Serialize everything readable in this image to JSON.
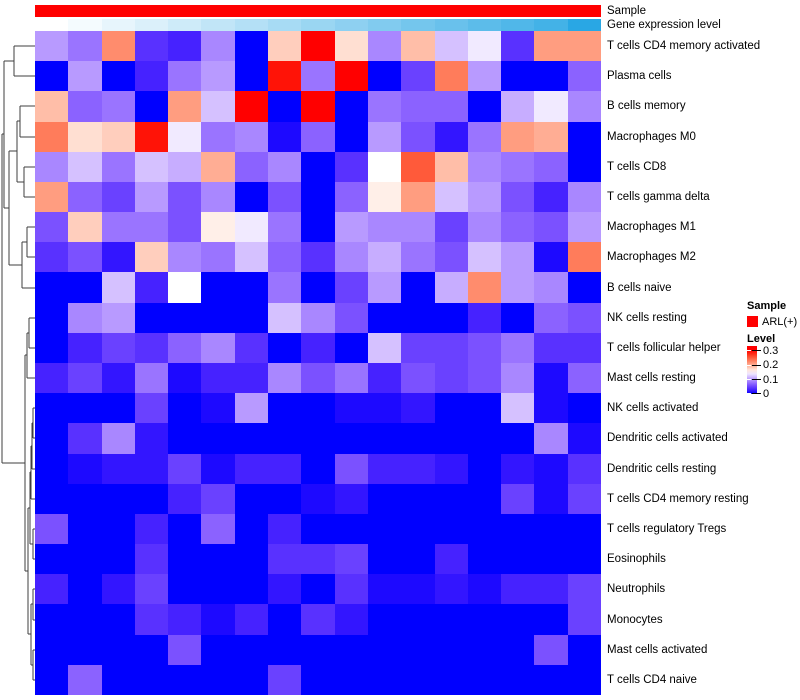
{
  "annotations": {
    "sample_label": "Sample",
    "gene_label": "Gene expression level",
    "sample_color": "#FF0000",
    "gene_gradient_start": "#FFFFFF",
    "gene_gradient_end": "#29A7E4"
  },
  "legend": {
    "sample_title": "Sample",
    "sample_item_label": "ARL(+)",
    "sample_item_color": "#FF0000",
    "level_title": "Level",
    "level_ticks": [
      "0.3",
      "0.2",
      "0.1",
      "0"
    ],
    "level_tick_values": [
      0.3,
      0.2,
      0.1,
      0
    ]
  },
  "chart_data": {
    "type": "heatmap",
    "rows": [
      "T cells CD4 memory activated",
      "Plasma cells",
      "B cells memory",
      "Macrophages M0",
      "T cells CD8",
      "T cells gamma delta",
      "Macrophages M1",
      "Macrophages M2",
      "B cells naive",
      "NK cells resting",
      "T cells follicular helper",
      "Mast cells resting",
      "NK cells activated",
      "Dendritic cells activated",
      "Dendritic cells resting",
      "T cells CD4 memory resting",
      "T cells regulatory  Tregs",
      "Eosinophils",
      "Neutrophils",
      "Monocytes",
      "Mast cells activated",
      "T cells CD4 naive"
    ],
    "n_cols": 17,
    "colormap": {
      "min": 0,
      "mid": 0.15,
      "max": 0.3,
      "min_color": "#0000FF",
      "mid_color": "#FFFFFF",
      "max_color": "#FF0000"
    },
    "column_annotation": {
      "sample_group": "ARL(+)",
      "gene_levels": [
        0.0,
        0.05,
        0.11,
        0.17,
        0.23,
        0.29,
        0.35,
        0.41,
        0.47,
        0.53,
        0.59,
        0.65,
        0.7,
        0.76,
        0.82,
        0.88,
        1.0
      ]
    },
    "matrix": [
      [
        0.1,
        0.08,
        0.22,
        0.04,
        0.03,
        0.09,
        0.0,
        0.18,
        0.3,
        0.17,
        0.09,
        0.19,
        0.12,
        0.14,
        0.04,
        0.21,
        0.21
      ],
      [
        0.0,
        0.1,
        0.0,
        0.03,
        0.08,
        0.1,
        0.0,
        0.29,
        0.08,
        0.3,
        0.0,
        0.05,
        0.23,
        0.1,
        0.0,
        0.0,
        0.07
      ],
      [
        0.19,
        0.07,
        0.08,
        0.0,
        0.21,
        0.12,
        0.3,
        0.0,
        0.3,
        0.0,
        0.08,
        0.07,
        0.07,
        0.0,
        0.11,
        0.14,
        0.09
      ],
      [
        0.23,
        0.17,
        0.18,
        0.29,
        0.14,
        0.08,
        0.09,
        0.01,
        0.07,
        0.0,
        0.1,
        0.06,
        0.02,
        0.08,
        0.21,
        0.2,
        0.0
      ],
      [
        0.09,
        0.12,
        0.08,
        0.12,
        0.11,
        0.2,
        0.07,
        0.09,
        0.0,
        0.04,
        0.15,
        0.25,
        0.19,
        0.09,
        0.08,
        0.07,
        0.0
      ],
      [
        0.21,
        0.07,
        0.05,
        0.1,
        0.06,
        0.09,
        0.0,
        0.06,
        0.0,
        0.07,
        0.16,
        0.21,
        0.12,
        0.1,
        0.06,
        0.03,
        0.09
      ],
      [
        0.06,
        0.18,
        0.08,
        0.08,
        0.06,
        0.16,
        0.14,
        0.08,
        0.0,
        0.1,
        0.09,
        0.09,
        0.05,
        0.09,
        0.07,
        0.06,
        0.1
      ],
      [
        0.04,
        0.06,
        0.02,
        0.18,
        0.09,
        0.08,
        0.12,
        0.07,
        0.04,
        0.09,
        0.11,
        0.08,
        0.06,
        0.12,
        0.1,
        0.01,
        0.23
      ],
      [
        0.0,
        0.0,
        0.12,
        0.03,
        0.15,
        0.0,
        0.0,
        0.08,
        0.0,
        0.05,
        0.1,
        0.0,
        0.11,
        0.22,
        0.1,
        0.09,
        0.0
      ],
      [
        0.0,
        0.09,
        0.1,
        0.0,
        0.0,
        0.0,
        0.0,
        0.12,
        0.09,
        0.06,
        0.0,
        0.0,
        0.0,
        0.03,
        0.0,
        0.07,
        0.06
      ],
      [
        0.0,
        0.03,
        0.05,
        0.04,
        0.07,
        0.09,
        0.04,
        0.0,
        0.03,
        0.0,
        0.12,
        0.05,
        0.05,
        0.06,
        0.08,
        0.04,
        0.04
      ],
      [
        0.03,
        0.05,
        0.02,
        0.08,
        0.01,
        0.03,
        0.03,
        0.09,
        0.06,
        0.08,
        0.03,
        0.06,
        0.05,
        0.06,
        0.09,
        0.01,
        0.07
      ],
      [
        0.0,
        0.0,
        0.0,
        0.05,
        0.0,
        0.01,
        0.1,
        0.0,
        0.0,
        0.01,
        0.01,
        0.02,
        0.0,
        0.0,
        0.12,
        0.01,
        0.0
      ],
      [
        0.0,
        0.04,
        0.09,
        0.02,
        0.0,
        0.0,
        0.0,
        0.0,
        0.0,
        0.0,
        0.0,
        0.0,
        0.0,
        0.0,
        0.0,
        0.09,
        0.01
      ],
      [
        0.0,
        0.01,
        0.02,
        0.02,
        0.05,
        0.01,
        0.03,
        0.03,
        0.0,
        0.06,
        0.03,
        0.03,
        0.02,
        0.0,
        0.02,
        0.01,
        0.04
      ],
      [
        0.0,
        0.0,
        0.0,
        0.0,
        0.03,
        0.05,
        0.0,
        0.0,
        0.01,
        0.02,
        0.0,
        0.0,
        0.0,
        0.0,
        0.05,
        0.01,
        0.05
      ],
      [
        0.06,
        0.0,
        0.0,
        0.03,
        0.0,
        0.07,
        0.0,
        0.03,
        0.0,
        0.0,
        0.0,
        0.0,
        0.0,
        0.0,
        0.0,
        0.0,
        0.0
      ],
      [
        0.0,
        0.0,
        0.0,
        0.04,
        0.0,
        0.0,
        0.0,
        0.04,
        0.04,
        0.05,
        0.0,
        0.0,
        0.03,
        0.0,
        0.0,
        0.0,
        0.0
      ],
      [
        0.03,
        0.0,
        0.02,
        0.05,
        0.0,
        0.0,
        0.0,
        0.02,
        0.0,
        0.04,
        0.01,
        0.01,
        0.02,
        0.01,
        0.03,
        0.03,
        0.05
      ],
      [
        0.0,
        0.0,
        0.0,
        0.04,
        0.03,
        0.01,
        0.03,
        0.0,
        0.04,
        0.02,
        0.0,
        0.0,
        0.0,
        0.0,
        0.0,
        0.0,
        0.05
      ],
      [
        0.0,
        0.0,
        0.0,
        0.0,
        0.06,
        0.0,
        0.0,
        0.0,
        0.0,
        0.0,
        0.0,
        0.0,
        0.0,
        0.0,
        0.0,
        0.06,
        0.0
      ],
      [
        0.0,
        0.07,
        0.0,
        0.0,
        0.0,
        0.0,
        0.0,
        0.05,
        0.0,
        0.0,
        0.0,
        0.0,
        0.0,
        0.0,
        0.0,
        0.0,
        0.0
      ]
    ],
    "row_dendrogram_segments": [
      [
        14,
        46,
        35,
        46
      ],
      [
        14,
        76,
        35,
        76
      ],
      [
        14,
        46,
        14,
        76
      ],
      [
        4,
        61,
        14,
        61
      ],
      [
        20,
        106,
        35,
        106
      ],
      [
        20,
        137,
        35,
        137
      ],
      [
        20,
        106,
        20,
        137
      ],
      [
        24,
        167,
        35,
        167
      ],
      [
        24,
        197,
        35,
        197
      ],
      [
        24,
        167,
        24,
        197
      ],
      [
        17,
        121,
        20,
        121
      ],
      [
        17,
        182,
        24,
        182
      ],
      [
        17,
        121,
        17,
        182
      ],
      [
        27,
        227,
        35,
        227
      ],
      [
        27,
        257,
        35,
        257
      ],
      [
        27,
        227,
        27,
        257
      ],
      [
        22,
        242,
        27,
        242
      ],
      [
        22,
        288,
        35,
        288
      ],
      [
        22,
        242,
        22,
        288
      ],
      [
        9,
        151,
        17,
        151
      ],
      [
        9,
        265,
        22,
        265
      ],
      [
        9,
        151,
        9,
        265
      ],
      [
        4,
        61,
        4,
        208
      ],
      [
        4,
        208,
        9,
        208
      ],
      [
        29,
        318,
        35,
        318
      ],
      [
        29,
        348,
        35,
        348
      ],
      [
        29,
        318,
        29,
        348
      ],
      [
        27,
        333,
        29,
        333
      ],
      [
        27,
        378,
        35,
        378
      ],
      [
        27,
        333,
        27,
        378
      ],
      [
        33,
        408,
        35,
        408
      ],
      [
        33,
        438,
        35,
        438
      ],
      [
        33,
        408,
        33,
        438
      ],
      [
        32,
        423,
        33,
        423
      ],
      [
        32,
        469,
        35,
        469
      ],
      [
        32,
        423,
        32,
        469
      ],
      [
        31,
        446,
        32,
        446
      ],
      [
        31,
        499,
        35,
        499
      ],
      [
        31,
        446,
        31,
        499
      ],
      [
        33,
        529,
        35,
        529
      ],
      [
        33,
        559,
        35,
        559
      ],
      [
        33,
        529,
        33,
        559
      ],
      [
        30,
        472,
        31,
        472
      ],
      [
        30,
        544,
        33,
        544
      ],
      [
        30,
        472,
        30,
        544
      ],
      [
        33,
        589,
        35,
        589
      ],
      [
        33,
        620,
        35,
        620
      ],
      [
        33,
        589,
        33,
        620
      ],
      [
        33,
        650,
        35,
        650
      ],
      [
        33,
        680,
        35,
        680
      ],
      [
        33,
        650,
        33,
        680
      ],
      [
        31,
        604,
        33,
        604
      ],
      [
        31,
        665,
        33,
        665
      ],
      [
        31,
        604,
        31,
        665
      ],
      [
        28,
        508,
        30,
        508
      ],
      [
        28,
        634,
        31,
        634
      ],
      [
        28,
        508,
        28,
        634
      ],
      [
        25,
        355,
        27,
        355
      ],
      [
        25,
        571,
        28,
        571
      ],
      [
        25,
        355,
        25,
        571
      ],
      [
        2,
        134,
        4,
        134
      ],
      [
        2,
        463,
        25,
        463
      ],
      [
        2,
        134,
        2,
        463
      ]
    ]
  }
}
